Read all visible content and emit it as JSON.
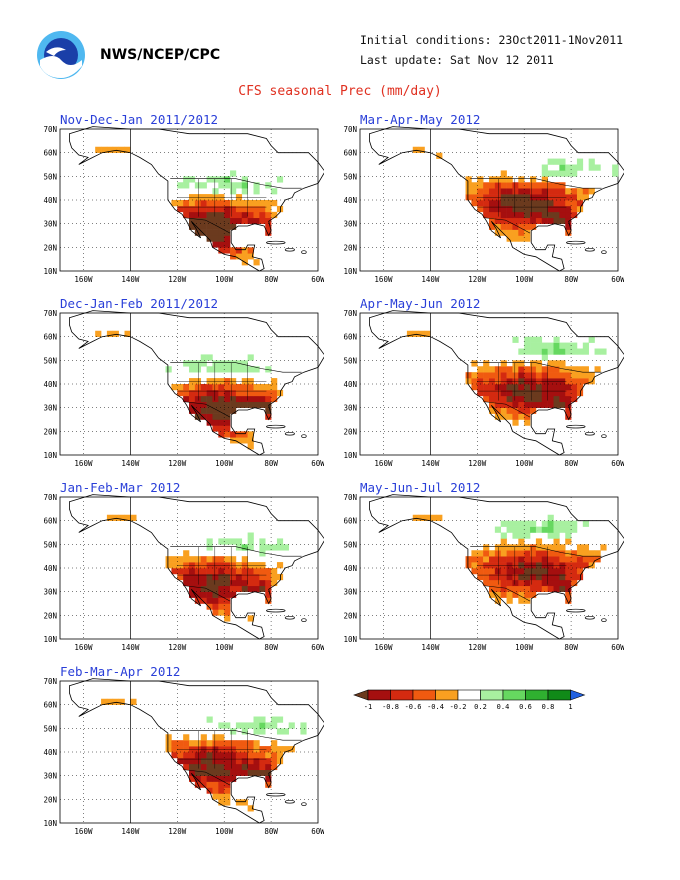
{
  "header": {
    "agency": "NWS/NCEP/CPC",
    "initial_conditions": "Initial conditions: 23Oct2011-1Nov2011",
    "last_update": "Last update: Sat Nov 12 2011",
    "title": "CFS seasonal Prec (mm/day)"
  },
  "axes": {
    "lat_labels": [
      "70N",
      "60N",
      "50N",
      "40N",
      "30N",
      "20N",
      "10N"
    ],
    "lon_labels": [
      "160W",
      "140W",
      "120W",
      "100W",
      "80W",
      "60W"
    ]
  },
  "panels": [
    {
      "id": "ndj",
      "title": "Nov-Dec-Jan 2011/2012",
      "dry_center": [
        -105,
        28
      ],
      "dry_intensity": 1.0,
      "dry_spread": [
        22,
        12
      ],
      "wet_center": [
        -98,
        46
      ],
      "se_dry": 0.45
    },
    {
      "id": "mam",
      "title": "Mar-Apr-May 2012",
      "dry_center": [
        -100,
        38
      ],
      "dry_intensity": 0.9,
      "dry_spread": [
        26,
        11
      ],
      "wet_center": [
        -85,
        52
      ],
      "se_dry": 0.7
    },
    {
      "id": "djf",
      "title": "Dec-Jan-Feb 2011/2012",
      "dry_center": [
        -103,
        29
      ],
      "dry_intensity": 0.95,
      "dry_spread": [
        24,
        12
      ],
      "wet_center": [
        -100,
        47
      ],
      "se_dry": 0.6
    },
    {
      "id": "amj",
      "title": "Apr-May-Jun 2012",
      "dry_center": [
        -98,
        37
      ],
      "dry_intensity": 0.85,
      "dry_spread": [
        28,
        11
      ],
      "wet_center": [
        -88,
        54
      ],
      "se_dry": 0.55
    },
    {
      "id": "jfm",
      "title": "Jan-Feb-Mar 2012",
      "dry_center": [
        -105,
        33
      ],
      "dry_intensity": 0.85,
      "dry_spread": [
        24,
        12
      ],
      "wet_center": [
        -95,
        49
      ],
      "se_dry": 0.6
    },
    {
      "id": "mjj",
      "title": "May-Jun-Jul 2012",
      "dry_center": [
        -96,
        39
      ],
      "dry_intensity": 0.8,
      "dry_spread": [
        28,
        11
      ],
      "wet_center": [
        -95,
        56
      ],
      "se_dry": 0.5
    },
    {
      "id": "fma",
      "title": "Feb-Mar-Apr 2012",
      "dry_center": [
        -104,
        34
      ],
      "dry_intensity": 0.85,
      "dry_spread": [
        26,
        12
      ],
      "wet_center": [
        -92,
        50
      ],
      "se_dry": 0.6
    }
  ],
  "legend": {
    "labels": [
      "-1",
      "-0.8",
      "-0.6",
      "-0.4",
      "-0.2",
      "0.2",
      "0.4",
      "0.6",
      "0.8",
      "1"
    ],
    "colors": {
      "lt_neg1": "#6b3a1e",
      "neg08": "#a50f0f",
      "neg06": "#d42a10",
      "neg04": "#f05a10",
      "neg02": "#f9a020",
      "neutral": "#ffffff",
      "pos02": "#a8f0a0",
      "pos04": "#66d860",
      "pos06": "#2fb030",
      "pos08": "#108a18",
      "gt1": "#2060e0"
    }
  }
}
